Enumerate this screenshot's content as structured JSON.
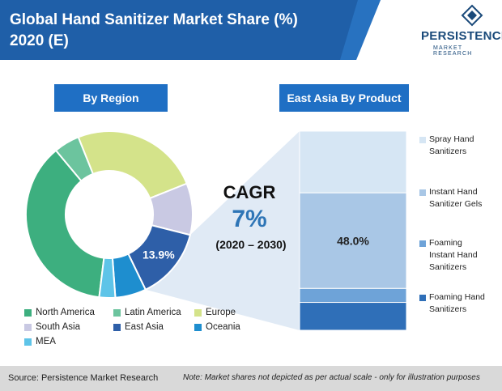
{
  "header": {
    "title_line1": "Global Hand Sanitizer Market Share (%)",
    "title_line2": "2020 (E)",
    "logo_main": "PERSISTENCE",
    "logo_sub": "MARKET RESEARCH",
    "banner_color": "#1f5fa8"
  },
  "panels": {
    "region_title": "By Region",
    "product_title": "East Asia By Product"
  },
  "cagr": {
    "title": "CAGR",
    "value": "7%",
    "period": "(2020 – 2030)"
  },
  "footer": {
    "source": "Source: Persistence Market Research",
    "note": "Note: Market shares not depicted as per actual scale - only for illustration purposes"
  },
  "chart_data": [
    {
      "type": "pie",
      "donut": true,
      "categories": [
        "North America",
        "Latin America",
        "Europe",
        "South Asia",
        "East Asia",
        "Oceania",
        "MEA"
      ],
      "values": [
        37,
        5,
        25,
        10,
        13.9,
        6,
        3.1
      ],
      "colors": [
        "#3daf7f",
        "#6cc49e",
        "#d4e38a",
        "#c9c9e3",
        "#2e5fa8",
        "#1e8ecf",
        "#5ec4e8"
      ],
      "data_labels": [
        "",
        "",
        "",
        "",
        "13.9%",
        "",
        ""
      ],
      "legend": [
        "North America",
        "Latin America",
        "Europe",
        "South Asia",
        "East Asia",
        "Oceania",
        "MEA"
      ]
    },
    {
      "type": "bar",
      "stacked": true,
      "categories": [
        "Spray Hand Sanitizers",
        "Instant Hand Sanitizer Gels",
        "Foaming Instant Hand Sanitizers",
        "Foaming Hand Sanitizers"
      ],
      "values": [
        31,
        48,
        7,
        14
      ],
      "colors": [
        "#d6e6f4",
        "#a9c7e6",
        "#6ea3d8",
        "#2f6fb8"
      ],
      "data_labels": [
        "",
        "48.0%",
        "",
        ""
      ],
      "legend_lines": [
        [
          "Spray Hand",
          "Sanitizers"
        ],
        [
          "Instant Hand",
          "Sanitizer Gels"
        ],
        [
          "Foaming",
          "Instant Hand",
          "Sanitizers"
        ],
        [
          "Foaming Hand",
          "Sanitizers"
        ]
      ]
    }
  ]
}
